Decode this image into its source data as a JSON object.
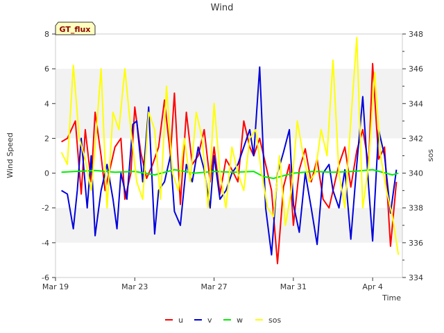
{
  "chart_data": {
    "type": "line",
    "title": "Wind",
    "badge": "GT_flux",
    "xlabel": "Time",
    "ylabel_left": "Wind Speed",
    "ylabel_right": "sos",
    "x_range_days": [
      0,
      17.5
    ],
    "x_start": "Mar 19",
    "x_ticks": [
      {
        "day": 0,
        "label": "Mar 19"
      },
      {
        "day": 4,
        "label": "Mar 23"
      },
      {
        "day": 8,
        "label": "Mar 27"
      },
      {
        "day": 12,
        "label": "Mar 31"
      },
      {
        "day": 16,
        "label": "Apr 4"
      }
    ],
    "ylim_left": [
      -6,
      8
    ],
    "yticks_left": [
      "-6",
      "-4",
      "-2",
      "0",
      "2",
      "4",
      "6",
      "8"
    ],
    "ylim_right": [
      334,
      348
    ],
    "yticks_right": [
      "334",
      "336",
      "338",
      "340",
      "342",
      "344",
      "346",
      "348"
    ],
    "bands": [
      [
        -4,
        -2
      ],
      [
        2,
        6
      ]
    ],
    "series": [
      {
        "name": "u",
        "color": "#ff0000",
        "axis": "left",
        "x": [
          0.3,
          0.6,
          1.0,
          1.3,
          1.5,
          1.8,
          2.0,
          2.3,
          2.5,
          2.8,
          3.0,
          3.3,
          3.5,
          3.8,
          4.0,
          4.3,
          4.6,
          4.9,
          5.2,
          5.5,
          5.8,
          6.0,
          6.3,
          6.6,
          6.9,
          7.2,
          7.5,
          7.8,
          8.0,
          8.3,
          8.6,
          8.9,
          9.2,
          9.5,
          9.8,
          10.0,
          10.3,
          10.6,
          10.9,
          11.2,
          11.5,
          11.8,
          12.0,
          12.3,
          12.6,
          12.9,
          13.2,
          13.5,
          13.8,
          14.0,
          14.3,
          14.6,
          14.9,
          15.2,
          15.5,
          15.8,
          16.0,
          16.3,
          16.6,
          16.9,
          17.2
        ],
        "values": [
          1.8,
          2.0,
          3.0,
          -1.2,
          2.5,
          -0.5,
          3.5,
          1.0,
          -1.0,
          0.5,
          1.5,
          2.0,
          -1.5,
          0.0,
          3.8,
          1.2,
          -0.3,
          0.5,
          1.5,
          4.2,
          1.0,
          4.6,
          -1.8,
          3.5,
          0.5,
          1.0,
          2.5,
          -0.5,
          1.5,
          -1.2,
          0.8,
          0.2,
          -0.5,
          3.0,
          1.5,
          1.0,
          2.0,
          0.5,
          -1.0,
          -5.2,
          -0.8,
          0.5,
          -3.0,
          0.2,
          1.4,
          -0.5,
          0.8,
          -1.5,
          -2.0,
          -1.0,
          0.5,
          1.5,
          -0.8,
          1.3,
          2.5,
          0.5,
          6.3,
          0.8,
          1.5,
          -4.2,
          -0.5
        ]
      },
      {
        "name": "v",
        "color": "#0000dd",
        "axis": "left",
        "x": [
          0.3,
          0.6,
          0.9,
          1.1,
          1.3,
          1.6,
          1.8,
          2.0,
          2.3,
          2.6,
          2.9,
          3.1,
          3.3,
          3.6,
          3.9,
          4.1,
          4.4,
          4.7,
          5.0,
          5.2,
          5.5,
          5.8,
          6.0,
          6.3,
          6.6,
          6.9,
          7.2,
          7.5,
          7.8,
          8.0,
          8.3,
          8.6,
          8.9,
          9.2,
          9.5,
          9.8,
          10.0,
          10.3,
          10.6,
          10.9,
          11.2,
          11.5,
          11.8,
          12.0,
          12.3,
          12.6,
          12.9,
          13.2,
          13.5,
          13.8,
          14.0,
          14.3,
          14.6,
          14.9,
          15.2,
          15.5,
          15.8,
          16.0,
          16.3,
          16.6,
          16.9,
          17.2
        ],
        "values": [
          -1.0,
          -1.2,
          -3.2,
          -1.0,
          2.0,
          -2.0,
          1.0,
          -3.6,
          -1.0,
          0.5,
          -1.5,
          -3.2,
          0.0,
          -1.5,
          2.8,
          3.0,
          -0.5,
          3.8,
          -3.5,
          -1.0,
          -0.5,
          1.0,
          -2.2,
          -3.0,
          0.5,
          -0.5,
          1.5,
          0.2,
          -2.0,
          1.0,
          -1.5,
          -1.0,
          0.0,
          0.5,
          1.5,
          2.5,
          1.0,
          6.1,
          -2.0,
          -4.7,
          0.0,
          1.2,
          2.5,
          -1.8,
          -3.4,
          0.0,
          -2.0,
          -4.1,
          0.0,
          0.5,
          -1.0,
          -2.0,
          0.2,
          -3.8,
          0.5,
          4.4,
          -0.8,
          -3.9,
          2.5,
          1.0,
          -2.3,
          0.2
        ]
      },
      {
        "name": "w",
        "color": "#00ee00",
        "axis": "left",
        "x": [
          0.3,
          1.0,
          2.0,
          3.0,
          4.0,
          5.0,
          6.0,
          7.0,
          8.0,
          9.0,
          10.0,
          10.5,
          11.0,
          11.5,
          12.0,
          13.0,
          14.0,
          15.0,
          16.0,
          17.0,
          17.3
        ],
        "values": [
          0.05,
          0.1,
          0.15,
          0.05,
          0.1,
          -0.1,
          0.2,
          0.0,
          0.1,
          0.05,
          0.1,
          -0.2,
          -0.3,
          -0.15,
          0.0,
          0.1,
          0.05,
          0.1,
          0.2,
          -0.1,
          0.0
        ]
      },
      {
        "name": "sos",
        "color": "#ffff00",
        "axis": "right",
        "x": [
          0.3,
          0.6,
          0.9,
          1.2,
          1.5,
          1.8,
          2.0,
          2.3,
          2.6,
          2.9,
          3.2,
          3.5,
          3.8,
          4.1,
          4.4,
          4.7,
          5.0,
          5.3,
          5.6,
          5.9,
          6.2,
          6.5,
          6.8,
          7.1,
          7.4,
          7.7,
          8.0,
          8.3,
          8.6,
          8.9,
          9.2,
          9.5,
          9.8,
          10.1,
          10.4,
          10.7,
          11.0,
          11.3,
          11.6,
          11.9,
          12.2,
          12.5,
          12.8,
          13.1,
          13.4,
          13.7,
          14.0,
          14.3,
          14.6,
          14.9,
          15.2,
          15.5,
          15.8,
          16.1,
          16.4,
          16.7,
          17.0,
          17.3
        ],
        "values": [
          341.2,
          340.5,
          346.2,
          342.0,
          340.8,
          339.0,
          341.5,
          346.0,
          338.0,
          343.5,
          342.5,
          346.0,
          342.5,
          339.5,
          338.5,
          343.5,
          342.5,
          338.5,
          345.0,
          340.0,
          339.0,
          342.0,
          339.5,
          343.5,
          342.0,
          338.0,
          344.0,
          340.0,
          338.0,
          341.5,
          340.0,
          339.0,
          342.0,
          342.5,
          340.0,
          338.0,
          337.5,
          341.0,
          337.0,
          339.0,
          343.0,
          341.0,
          339.5,
          340.0,
          342.5,
          341.0,
          346.5,
          340.0,
          338.0,
          343.0,
          347.8,
          338.0,
          340.5,
          345.8,
          341.0,
          339.0,
          337.5,
          335.3
        ]
      }
    ],
    "legend": [
      {
        "name": "u",
        "color": "#ff0000"
      },
      {
        "name": "v",
        "color": "#0000dd"
      },
      {
        "name": "w",
        "color": "#00ee00"
      },
      {
        "name": "sos",
        "color": "#ffff00"
      }
    ],
    "legend_position": "bottom-center",
    "grid": false
  }
}
